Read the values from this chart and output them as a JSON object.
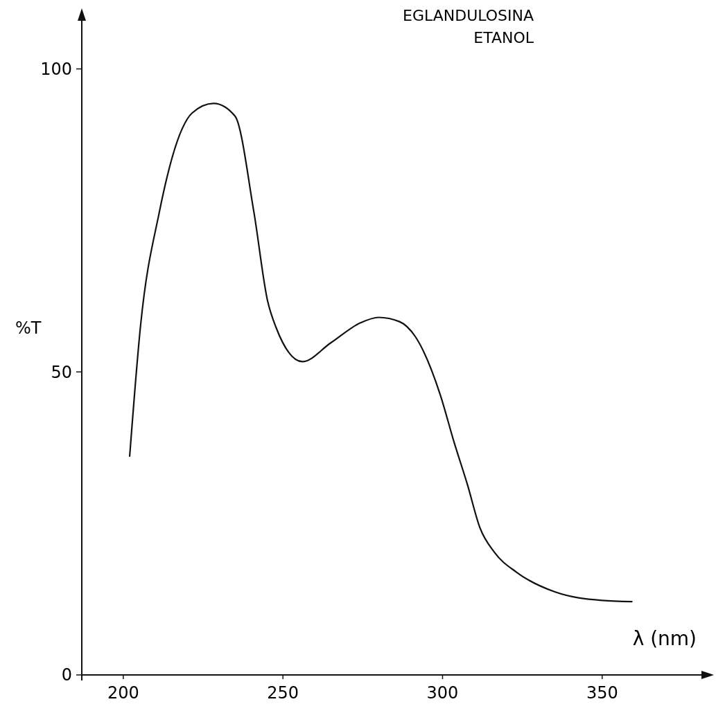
{
  "chart_data": {
    "type": "line",
    "title": "EGLANDULOSINA",
    "subtitle": "ETANOL",
    "xlabel": "λ (nm)",
    "ylabel": "%T",
    "xlim": [
      187,
      385
    ],
    "ylim": [
      0,
      110
    ],
    "xticks": [
      200,
      250,
      300,
      350
    ],
    "yticks": [
      0,
      50,
      100
    ],
    "grid": false,
    "marker": "none",
    "line_style": "solid",
    "series": [
      {
        "color": "#111111",
        "x": [
          202.0,
          205.4,
          211.3,
          218.5,
          221.5,
          228.3,
          235.0,
          240.9,
          245.2,
          247.8,
          256.1,
          265.0,
          274.3,
          280.0,
          286.5,
          291.5,
          299.3,
          303.5,
          307.8,
          311.7,
          316.3,
          323.3,
          335.2,
          350.0,
          359.3
        ],
        "values": [
          36.1,
          57.6,
          76.4,
          90.2,
          92.7,
          94.3,
          92.2,
          76.4,
          61.7,
          57.4,
          51.7,
          54.8,
          58.1,
          59.0,
          58.3,
          55.8,
          46.2,
          38.6,
          31.4,
          24.3,
          20.2,
          16.9,
          13.7,
          12.3,
          12.1
        ]
      }
    ]
  }
}
